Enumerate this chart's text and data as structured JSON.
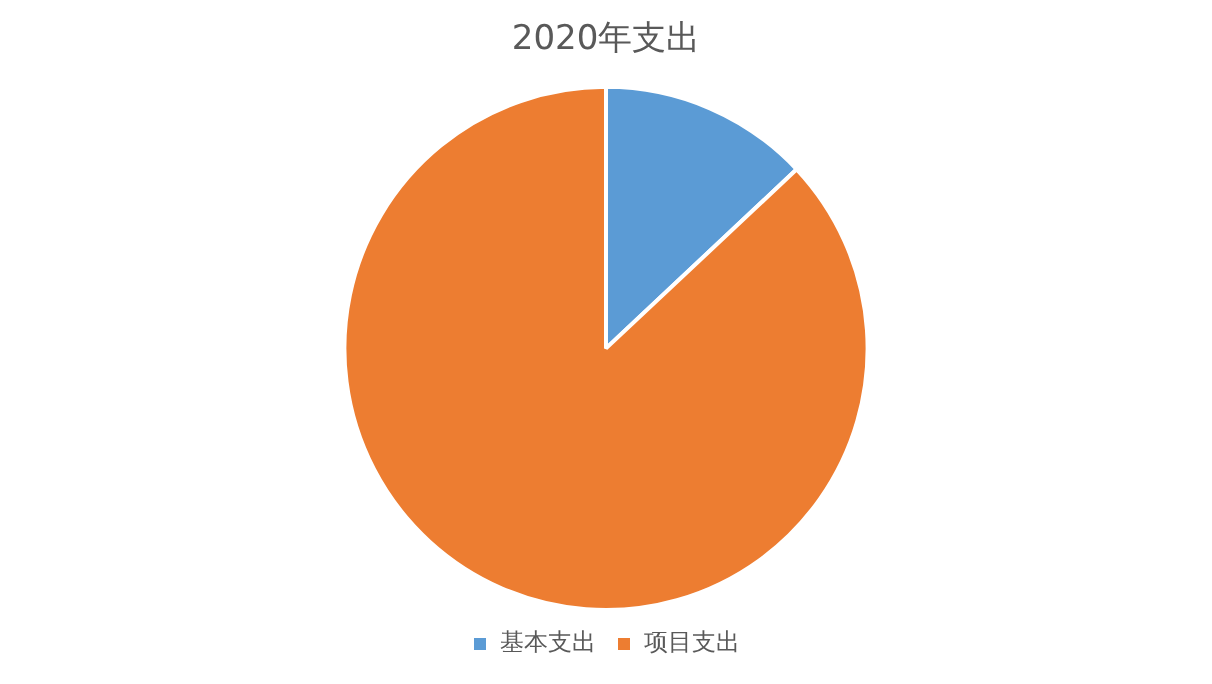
{
  "chart_data": {
    "type": "pie",
    "title": "2020年支出",
    "categories": [
      "基本支出",
      "项目支出"
    ],
    "values": [
      13,
      87
    ],
    "colors": [
      "#5b9bd5",
      "#ed7d31"
    ],
    "legend": "bottom"
  }
}
